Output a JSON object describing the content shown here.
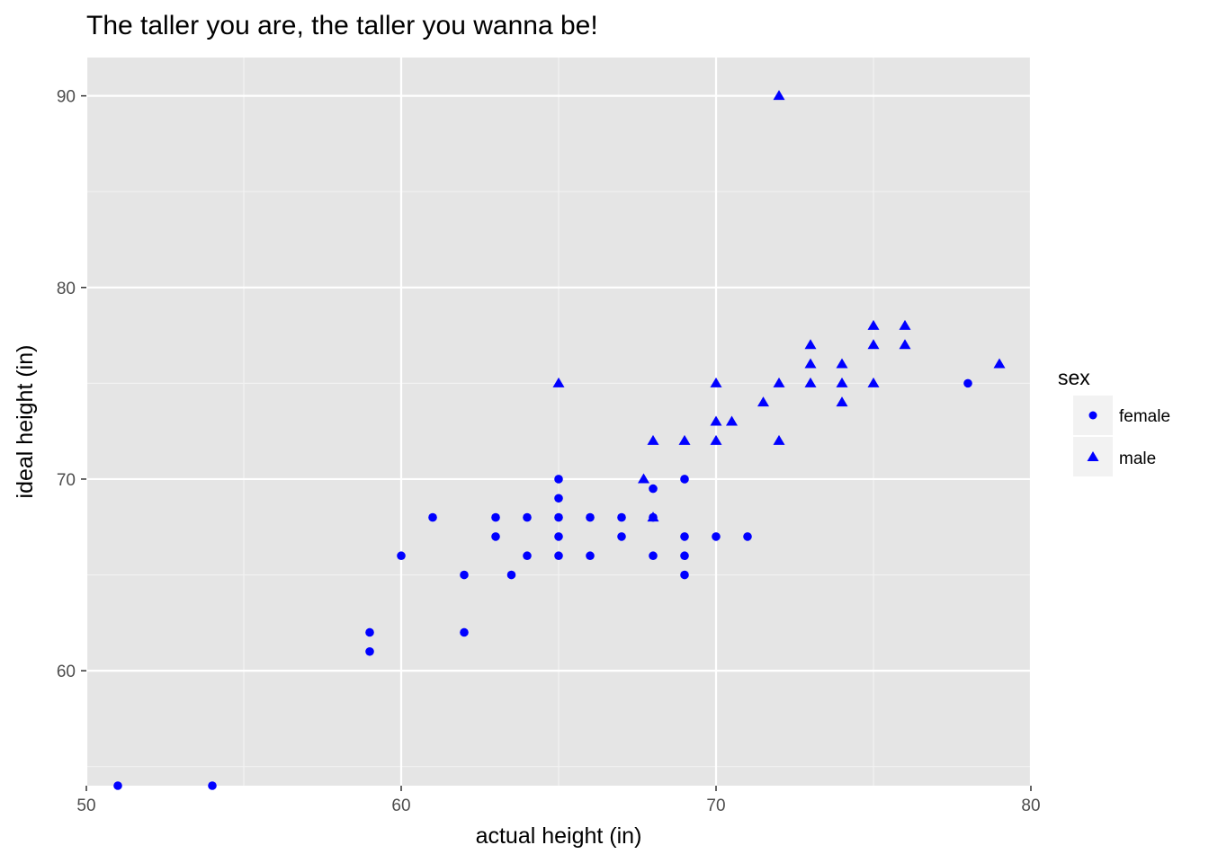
{
  "chart_data": {
    "type": "scatter",
    "title": "The taller you are, the taller you wanna be!",
    "xlabel": "actual height (in)",
    "ylabel": "ideal height (in)",
    "xlim": [
      50,
      80
    ],
    "ylim": [
      54,
      92
    ],
    "x_ticks": [
      "50",
      "60",
      "70",
      "80"
    ],
    "y_ticks": [
      "60",
      "70",
      "80",
      "90"
    ],
    "grid": true,
    "point_color": "#0000ff",
    "panel_background": "#e5e5e5",
    "legend": {
      "title": "sex",
      "position": "right",
      "entries": [
        "female",
        "male"
      ]
    },
    "series": [
      {
        "name": "female",
        "shape": "circle",
        "points": [
          [
            51,
            54
          ],
          [
            54,
            54
          ],
          [
            59,
            62
          ],
          [
            59,
            61
          ],
          [
            60,
            66
          ],
          [
            61,
            68
          ],
          [
            62,
            65
          ],
          [
            62,
            62
          ],
          [
            63,
            68
          ],
          [
            63,
            67
          ],
          [
            63.5,
            65
          ],
          [
            64,
            68
          ],
          [
            64,
            66
          ],
          [
            65,
            70
          ],
          [
            65,
            69
          ],
          [
            65,
            68
          ],
          [
            65,
            67
          ],
          [
            65,
            66
          ],
          [
            66,
            68
          ],
          [
            66,
            66
          ],
          [
            67,
            68
          ],
          [
            67,
            67
          ],
          [
            68,
            69.5
          ],
          [
            68,
            68
          ],
          [
            68,
            66
          ],
          [
            69,
            70
          ],
          [
            69,
            67
          ],
          [
            69,
            66
          ],
          [
            69,
            65
          ],
          [
            70,
            67
          ],
          [
            71,
            67
          ],
          [
            78,
            75
          ]
        ]
      },
      {
        "name": "male",
        "shape": "triangle",
        "points": [
          [
            65,
            75
          ],
          [
            67.7,
            70
          ],
          [
            68,
            72
          ],
          [
            68,
            68
          ],
          [
            69,
            72
          ],
          [
            70,
            75
          ],
          [
            70,
            73
          ],
          [
            70,
            72
          ],
          [
            70.5,
            73
          ],
          [
            71.5,
            74
          ],
          [
            72,
            90
          ],
          [
            72,
            75
          ],
          [
            72,
            72
          ],
          [
            73,
            77
          ],
          [
            73,
            76
          ],
          [
            73,
            75
          ],
          [
            74,
            76
          ],
          [
            74,
            75
          ],
          [
            74,
            74
          ],
          [
            75,
            78
          ],
          [
            75,
            77
          ],
          [
            75,
            75
          ],
          [
            76,
            78
          ],
          [
            76,
            77
          ],
          [
            79,
            76
          ]
        ]
      }
    ]
  }
}
